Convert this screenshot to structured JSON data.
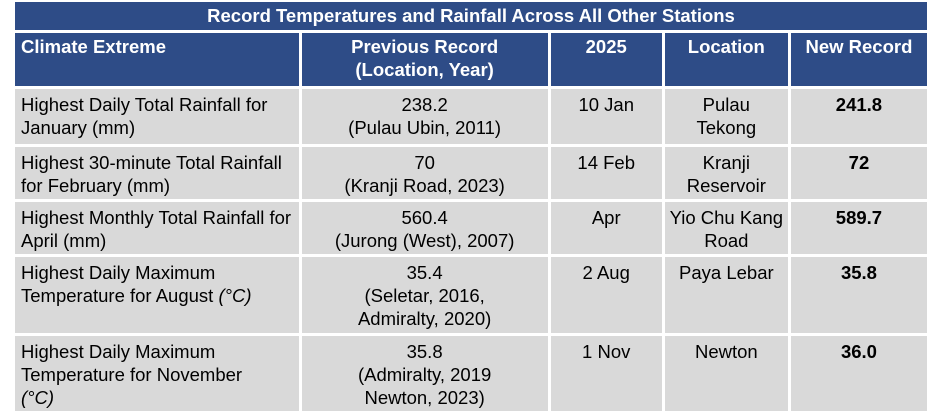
{
  "title": "Record Temperatures and Rainfall Across All Other Stations",
  "headers": [
    "Climate Extreme",
    "Previous Record (Location, Year)",
    "2025",
    "Location",
    "New Record"
  ],
  "rows": [
    {
      "extreme": "Highest Daily Total Rainfall for January (mm)",
      "previous_value": "238.2",
      "previous_where": "(Pulau Ubin, 2011)",
      "date": "10 Jan",
      "location": "Pulau Tekong",
      "new": "241.8"
    },
    {
      "extreme": "Highest 30-minute Total Rainfall for February (mm)",
      "previous_value": "70",
      "previous_where": "(Kranji Road, 2023)",
      "date": "14 Feb",
      "location": "Kranji Reservoir",
      "new": "72"
    },
    {
      "extreme": "Highest Monthly Total Rainfall for April (mm)",
      "previous_value": "560.4",
      "previous_where": "(Jurong (West), 2007)",
      "date": "Apr",
      "location": "Yio Chu Kang Road",
      "new": "589.7"
    },
    {
      "extreme": "Highest Daily Maximum Temperature for August",
      "unit": "(°C)",
      "previous_value": "35.4",
      "previous_where": "(Seletar, 2016, Admiralty, 2020)",
      "date": "2 Aug",
      "location": "Paya Lebar",
      "new": "35.8"
    },
    {
      "extreme": "Highest Daily Maximum Temperature for November",
      "unit": "(°C)",
      "previous_value": "35.8",
      "previous_where": "(Admiralty, 2019 Newton, 2023)",
      "date": "1 Nov",
      "location": "Newton",
      "new": "36.0"
    }
  ]
}
